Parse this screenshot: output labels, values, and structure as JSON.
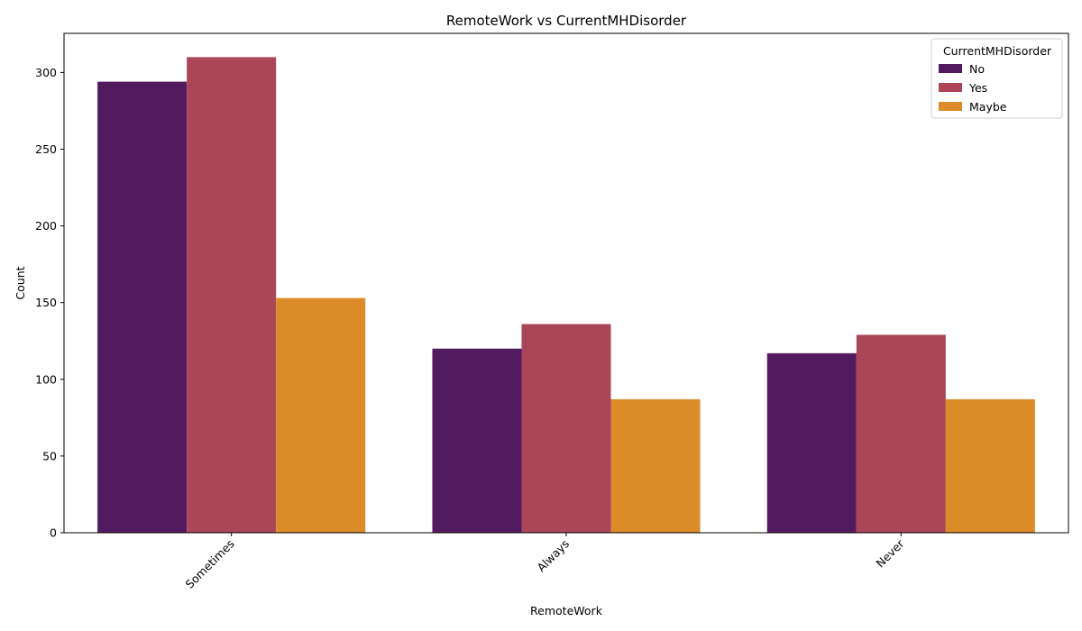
{
  "chart_data": {
    "type": "bar",
    "title": "RemoteWork vs CurrentMHDisorder",
    "xlabel": "RemoteWork",
    "ylabel": "Count",
    "categories": [
      "Sometimes",
      "Always",
      "Never"
    ],
    "series": [
      {
        "name": "No",
        "color": "#531b5f",
        "values": [
          294,
          120,
          117
        ]
      },
      {
        "name": "Yes",
        "color": "#ab4659",
        "values": [
          310,
          136,
          129
        ]
      },
      {
        "name": "Maybe",
        "color": "#dc8b29",
        "values": [
          153,
          87,
          87
        ]
      }
    ],
    "ylim": [
      0,
      325.5
    ],
    "yticks": [
      0,
      50,
      100,
      150,
      200,
      250,
      300
    ],
    "legend": {
      "title": "CurrentMHDisorder",
      "placement": "top-right"
    },
    "grid": false
  }
}
